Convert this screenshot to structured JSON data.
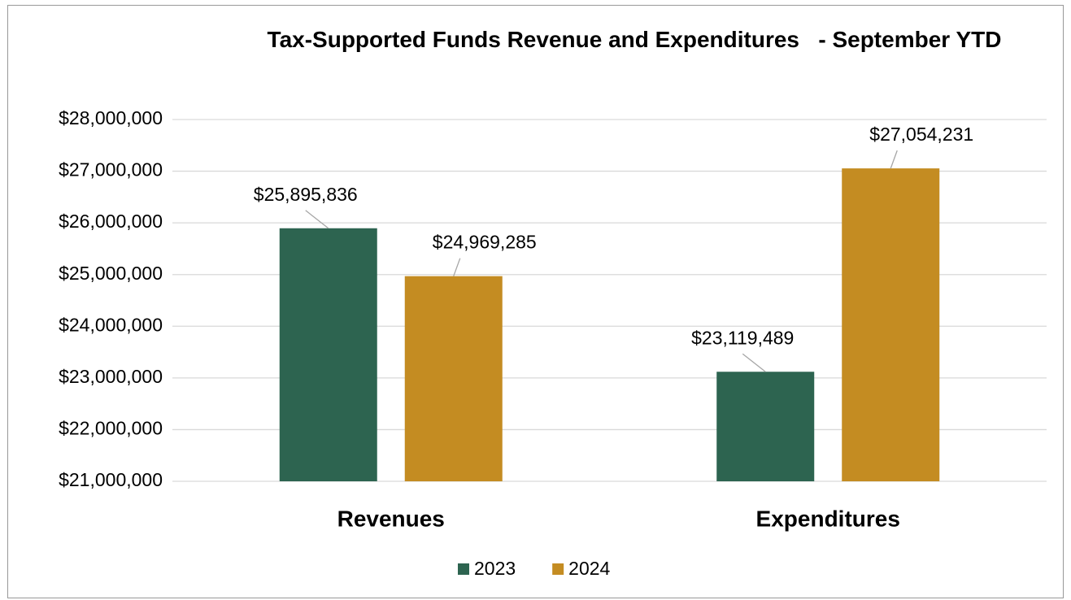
{
  "chart_data": {
    "type": "bar",
    "title": "Tax-Supported Funds Revenue and Expenditures   - September YTD",
    "categories": [
      "Revenues",
      "Expenditures"
    ],
    "series": [
      {
        "name": "2023",
        "color": "#2d6450",
        "values": [
          25895836,
          23119489
        ],
        "value_labels": [
          "$25,895,836",
          "$23,119,489"
        ]
      },
      {
        "name": "2024",
        "color": "#c48c22",
        "values": [
          24969285,
          27054231
        ],
        "value_labels": [
          "$24,969,285",
          "$27,054,231"
        ]
      }
    ],
    "ylim": [
      21000000,
      28000000
    ],
    "yticks": [
      {
        "value": 21000000,
        "label": "$21,000,000"
      },
      {
        "value": 22000000,
        "label": "$22,000,000"
      },
      {
        "value": 23000000,
        "label": "$23,000,000"
      },
      {
        "value": 24000000,
        "label": "$24,000,000"
      },
      {
        "value": 25000000,
        "label": "$25,000,000"
      },
      {
        "value": 26000000,
        "label": "$26,000,000"
      },
      {
        "value": 27000000,
        "label": "$27,000,000"
      },
      {
        "value": 28000000,
        "label": "$28,000,000"
      }
    ],
    "grid": true,
    "legend": "bottom"
  }
}
